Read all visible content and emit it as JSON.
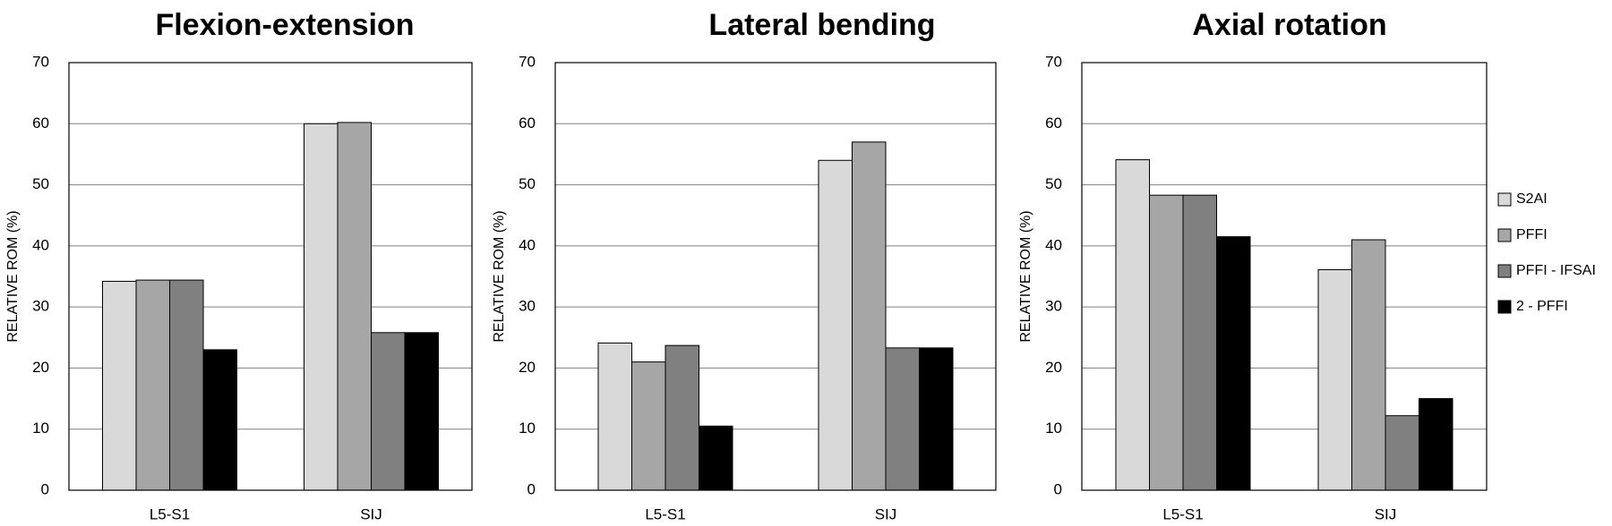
{
  "chart_data": [
    {
      "type": "bar",
      "title": "Flexion-extension",
      "ylabel": "RELATIVE ROM (%)",
      "xlabel": "",
      "categories": [
        "L5-S1",
        "SIJ"
      ],
      "ylim": [
        0,
        70
      ],
      "yticks": [
        0,
        10,
        20,
        30,
        40,
        50,
        60,
        70
      ],
      "grid": true,
      "series": [
        {
          "name": "S2AI",
          "values": [
            34.2,
            60.0
          ]
        },
        {
          "name": "PFFI",
          "values": [
            34.4,
            60.2
          ]
        },
        {
          "name": "PFFI - IFSAI",
          "values": [
            34.4,
            25.8
          ]
        },
        {
          "name": "2 - PFFI",
          "values": [
            23.0,
            25.8
          ]
        }
      ]
    },
    {
      "type": "bar",
      "title": "Lateral bending",
      "ylabel": "RELATIVE ROM (%)",
      "xlabel": "",
      "categories": [
        "L5-S1",
        "SIJ"
      ],
      "ylim": [
        0,
        70
      ],
      "yticks": [
        0,
        10,
        20,
        30,
        40,
        50,
        60,
        70
      ],
      "grid": true,
      "series": [
        {
          "name": "S2AI",
          "values": [
            24.1,
            54.0
          ]
        },
        {
          "name": "PFFI",
          "values": [
            21.0,
            57.0
          ]
        },
        {
          "name": "PFFI - IFSAI",
          "values": [
            23.7,
            23.3
          ]
        },
        {
          "name": "2 - PFFI",
          "values": [
            10.5,
            23.3
          ]
        }
      ]
    },
    {
      "type": "bar",
      "title": "Axial rotation",
      "ylabel": "RELATIVE ROM (%)",
      "xlabel": "",
      "categories": [
        "L5-S1",
        "SIJ"
      ],
      "ylim": [
        0,
        70
      ],
      "yticks": [
        0,
        10,
        20,
        30,
        40,
        50,
        60,
        70
      ],
      "grid": true,
      "legend_position": "right",
      "series": [
        {
          "name": "S2AI",
          "values": [
            54.1,
            36.1
          ]
        },
        {
          "name": "PFFI",
          "values": [
            48.3,
            41.0
          ]
        },
        {
          "name": "PFFI - IFSAI",
          "values": [
            48.3,
            12.2
          ]
        },
        {
          "name": "2 - PFFI",
          "values": [
            41.5,
            15.0
          ]
        }
      ]
    }
  ],
  "legend": {
    "items": [
      {
        "label": "S2AI",
        "color": "#d9d9d9"
      },
      {
        "label": "PFFI",
        "color": "#a6a6a6"
      },
      {
        "label": "PFFI - IFSAI",
        "color": "#808080"
      },
      {
        "label": "2 - PFFI",
        "color": "#000000"
      }
    ]
  },
  "colors": {
    "bar_stroke": "#000000",
    "grid": "#808080",
    "frame": "#000000"
  }
}
